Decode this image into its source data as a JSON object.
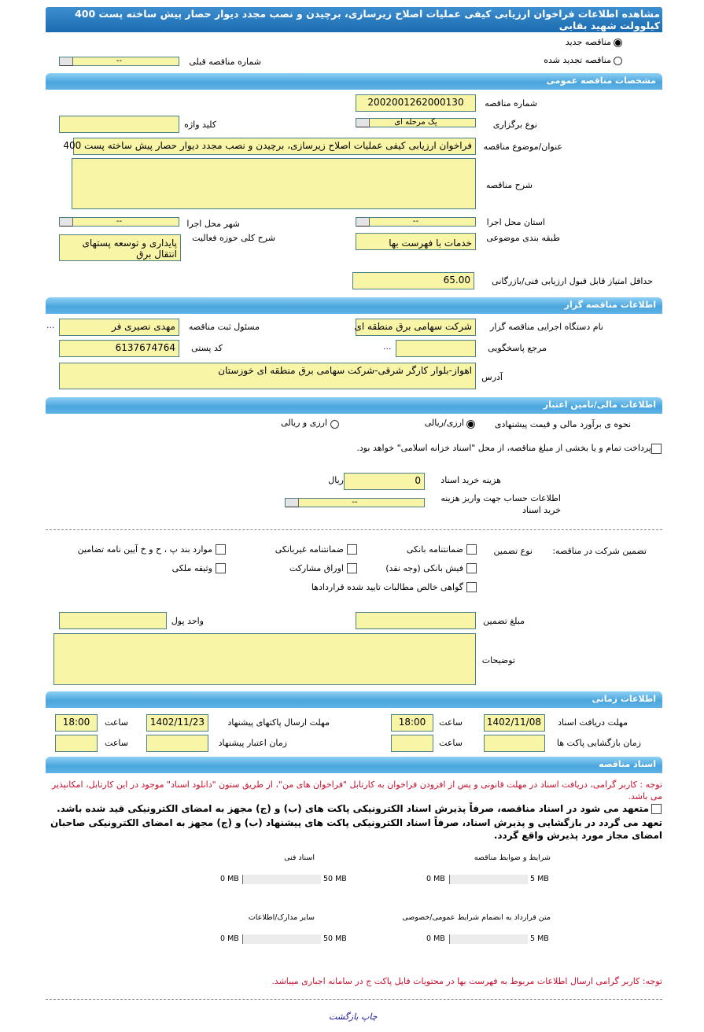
{
  "title": "مشاهده اطلاعات فراخوان ارزیابی کیفی عملیات اصلاح زیرسازی، برچیدن و نصب مجدد دیوار حصار پیش ساخته پست 400 کیلوولت شهید بقایی",
  "tender_type": {
    "new_label": "مناقصه جدید",
    "renewed_label": "مناقصه تجدید شده",
    "selected": "new",
    "prev_number_label": "شماره مناقصه قبلی",
    "prev_number_value": "--"
  },
  "general": {
    "header": "مشخصات مناقصه عمومی",
    "number_label": "شماره مناقصه",
    "number_value": "2002001262000130",
    "holding_type_label": "نوع برگزاری",
    "holding_type_value": "یک مرحله ای",
    "keyword_label": "کلید واژه",
    "keyword_value": "",
    "subject_label": "عنوان/موضوع مناقصه",
    "subject_value": "فراخوان ارزیابی کیفی عملیات اصلاح زیرسازی، برچیدن و نصب مجدد دیوار حصار پیش ساخته پست 400",
    "description_label": "شرح مناقصه",
    "description_value": "",
    "province_label": "استان محل اجرا",
    "province_value": "--",
    "city_label": "شهر محل اجرا",
    "city_value": "--",
    "category_label": "طبقه بندی موضوعی",
    "category_value": "خدمات با فهرست بها",
    "activity_label": "شرح کلی حوزه فعالیت",
    "activity_value": "پایداری و توسعه پستهای انتقال برق",
    "min_score_label": "حداقل امتیاز قابل قبول ارزیابی فنی/بازرگانی",
    "min_score_value": "65.00"
  },
  "organizer": {
    "header": "اطلاعات مناقصه گزار",
    "org_label": "نام دستگاه اجرایی مناقصه گزار",
    "org_value": "شرکت سهامی برق منطقه ای",
    "registrar_label": "مسئول ثبت مناقصه",
    "registrar_value": "مهدی نصیری فر",
    "more": "...",
    "reference_label": "مرجع پاسخگویی",
    "reference_value": "",
    "postal_label": "کد پستی",
    "postal_value": "6137674764",
    "address_label": "آدرس",
    "address_value": "اهواز-بلوار کارگر شرقی-شرکت سهامی برق منطقه ای خوزستان"
  },
  "finance": {
    "header": "اطلاعات مالی/تامین اعتبار",
    "estimate_label": "نحوه ی برآورد مالی و قیمت پیشنهادی",
    "opt_rial": "ارزی/ریالی",
    "opt_both": "ارزی و ریالی",
    "selected": "rial",
    "treasury_text": "پرداخت تمام و یا بخشی از مبلغ مناقصه، از محل \"اسناد خزانه اسلامی\" خواهد بود.",
    "doc_cost_label": "هزینه خرید اسناد",
    "doc_cost_value": "0",
    "doc_cost_unit": "ریال",
    "account_label": "اطلاعات حساب جهت واریز هزینه خرید اسناد",
    "account_value": "--"
  },
  "guarantee": {
    "label": "تضمین شرکت در مناقصه:",
    "type_label": "نوع تضمین",
    "options": [
      "ضمانتنامه بانکی",
      "ضمانتنامه غیربانکی",
      "موارد بند پ ، ح و خ آیین نامه تضامین",
      "فیش بانکی (وجه نقد)",
      "اوراق مشارکت",
      "وثیقه ملکی",
      "گواهی خالص مطالبات تایید شده قراردادها"
    ],
    "amount_label": "مبلغ تضمین",
    "amount_value": "",
    "currency_label": "واحد پول",
    "currency_value": "",
    "notes_label": "توضیحات",
    "notes_value": ""
  },
  "timing": {
    "header": "اطلاعات زمانی",
    "receive_label": "مهلت دریافت اسناد",
    "receive_date": "1402/11/08",
    "receive_time": "18:00",
    "submit_label": "مهلت ارسال پاکتهای پیشنهاد",
    "submit_date": "1402/11/23",
    "submit_time": "18:00",
    "opening_label": "زمان بازگشایی پاکت ها",
    "opening_date": "",
    "opening_time": "",
    "validity_label": "زمان اعتبار پیشنهاد",
    "validity_date": "",
    "validity_time": "",
    "time_label": "ساعت"
  },
  "documents": {
    "header": "اسناد مناقصه",
    "notice": "توجه : کاربر گرامی، دریافت اسناد در مهلت قانونی و پس از افزودن فراخوان به کارتابل \"فراخوان های من\"، از طریق ستون \"دانلود اسناد\" موجود در این کارتابل، امکانپذیر می باشد.",
    "commit1": "متعهد می شود در اسناد مناقصه، صرفاً پذیرش اسناد الکترونیکی پاکت های (ب) و (ج) مجهز به امضای الکترونیکی قید شده باشد.",
    "commit2": "تعهد می گردد در بازگشایی و پذیرش اسناد، صرفاً اسناد الکترونیکی پاکت های پیشنهاد (ب) و (ج) مجهز به امضای الکترونیکی صاحبان امضای مجاز مورد پذیرش واقع گردد.",
    "files": [
      {
        "label": "شرایط و ضوابط مناقصه",
        "used": "0 MB",
        "max": "5 MB",
        "fill": 0
      },
      {
        "label": "اسناد فنی",
        "used": "0 MB",
        "max": "50 MB",
        "fill": 0
      },
      {
        "label": "متن قرارداد به انضمام شرایط عمومی/خصوصی",
        "used": "0 MB",
        "max": "5 MB",
        "fill": 0
      },
      {
        "label": "سایر مدارک/اطلاعات",
        "used": "0 MB",
        "max": "50 MB",
        "fill": 0
      }
    ],
    "footer_notice": "توجه: کاربر گرامی ارسال اطلاعات مربوط به فهرست بها در محتویات فایل پاکت ج در سامانه اجباری میباشد."
  },
  "actions": {
    "print": "چاپ",
    "back": "بازگشت"
  },
  "colors": {
    "header_dark": "#1a6bb0",
    "section": "#4aa6de",
    "input_bg": "#f8f5a6",
    "notice": "#c8102e",
    "link": "#1a1aa0"
  }
}
